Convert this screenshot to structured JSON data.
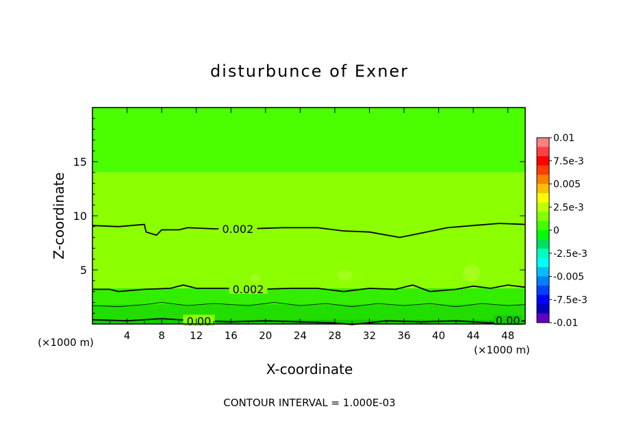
{
  "chart_data": {
    "type": "contour",
    "title": "disturbunce of Exner",
    "xlabel": "X-coordinate",
    "ylabel": "Z-coordinate",
    "x_unit_left": "(×1000 m)",
    "x_unit_right": "(×1000 m)",
    "xlim": [
      0,
      50
    ],
    "ylim": [
      0,
      20
    ],
    "x_ticks": [
      4,
      8,
      12,
      16,
      20,
      24,
      28,
      32,
      36,
      40,
      44,
      48
    ],
    "y_ticks": [
      5,
      10,
      15
    ],
    "footer": "CONTOUR INTERVAL = 1.000E-03",
    "contour_interval": 0.001,
    "bands": [
      {
        "zmin": 14,
        "zmax": 20,
        "value": 0.0015,
        "color": "#4cff00"
      },
      {
        "zmin": 3.3,
        "zmax": 14,
        "value": 0.0025,
        "color": "#8cff00"
      },
      {
        "zmin": 0,
        "zmax": 3.3,
        "value": 0.001,
        "color": "#33ee00"
      }
    ],
    "contours": [
      {
        "label": "0.002",
        "value": 0.002,
        "label_x": 16.8,
        "points": [
          [
            0,
            9.1
          ],
          [
            3,
            9.0
          ],
          [
            6,
            9.2
          ],
          [
            6.2,
            8.5
          ],
          [
            7.4,
            8.2
          ],
          [
            8,
            8.7
          ],
          [
            10,
            8.7
          ],
          [
            11,
            8.9
          ],
          [
            14,
            8.8
          ],
          [
            18,
            8.8
          ],
          [
            22,
            8.9
          ],
          [
            26,
            8.9
          ],
          [
            29,
            8.6
          ],
          [
            32,
            8.5
          ],
          [
            35.5,
            8.0
          ],
          [
            38,
            8.4
          ],
          [
            41,
            8.9
          ],
          [
            44,
            9.1
          ],
          [
            47,
            9.3
          ],
          [
            50,
            9.2
          ]
        ]
      },
      {
        "label": "0.002",
        "value": 0.002,
        "label_x": 18.0,
        "points": [
          [
            0,
            3.2
          ],
          [
            2,
            3.2
          ],
          [
            3,
            3.0
          ],
          [
            6,
            3.2
          ],
          [
            9,
            3.3
          ],
          [
            10.5,
            3.6
          ],
          [
            12,
            3.3
          ],
          [
            16,
            3.3
          ],
          [
            19,
            3.2
          ],
          [
            23,
            3.3
          ],
          [
            26,
            3.3
          ],
          [
            29,
            3.0
          ],
          [
            32,
            3.3
          ],
          [
            35,
            3.2
          ],
          [
            37,
            3.6
          ],
          [
            39,
            3.0
          ],
          [
            42,
            3.2
          ],
          [
            44,
            3.5
          ],
          [
            46,
            3.3
          ],
          [
            48,
            3.6
          ],
          [
            50,
            3.4
          ]
        ]
      },
      {
        "label": "",
        "value": 0.001,
        "label_x": null,
        "points": [
          [
            0,
            1.7
          ],
          [
            3,
            1.6
          ],
          [
            6,
            1.8
          ],
          [
            8,
            2.0
          ],
          [
            11,
            1.7
          ],
          [
            14,
            1.9
          ],
          [
            18,
            1.7
          ],
          [
            21,
            2.0
          ],
          [
            24,
            1.7
          ],
          [
            27,
            1.9
          ],
          [
            30,
            1.6
          ],
          [
            33,
            1.9
          ],
          [
            36,
            1.7
          ],
          [
            39,
            1.9
          ],
          [
            42,
            1.6
          ],
          [
            45,
            1.9
          ],
          [
            48,
            1.7
          ],
          [
            50,
            1.8
          ]
        ]
      },
      {
        "label": "0.00",
        "value": 0.0,
        "label_x": 12.3,
        "points": [
          [
            0,
            0.4
          ],
          [
            4,
            0.3
          ],
          [
            8,
            0.5
          ],
          [
            12,
            0.3
          ],
          [
            16,
            0.2
          ],
          [
            20,
            0.3
          ],
          [
            24,
            0.2
          ],
          [
            28,
            0.1
          ],
          [
            30,
            -0.1
          ],
          [
            34,
            0.3
          ],
          [
            38,
            0.2
          ],
          [
            42,
            0.3
          ],
          [
            46,
            0.1
          ],
          [
            48,
            0.2
          ],
          [
            50,
            0.3
          ]
        ]
      }
    ],
    "blobs": [
      {
        "x": 18.8,
        "z": 4.2,
        "rx": 0.6,
        "rz": 0.4,
        "color": "#a2ff1a"
      },
      {
        "x": 29.2,
        "z": 4.5,
        "rx": 0.9,
        "rz": 0.5,
        "color": "#a2ff1a"
      },
      {
        "x": 43.8,
        "z": 4.7,
        "rx": 1.0,
        "rz": 0.8,
        "color": "#a2ff1a"
      }
    ],
    "label_at_right": {
      "text": "0.00",
      "x": 48.0,
      "z": 0.1
    },
    "colorbar": {
      "labels": [
        "0.01",
        "7.5e-3",
        "0.005",
        "2.5e-3",
        "0",
        "-2.5e-3",
        "-0.005",
        "-7.5e-3",
        "-0.01"
      ],
      "colors": [
        "#ff8080",
        "#ff4040",
        "#ff0000",
        "#ff4000",
        "#ff8000",
        "#ffbf00",
        "#ffff00",
        "#bfff00",
        "#80ff00",
        "#40ff00",
        "#00ff00",
        "#00e060",
        "#00ffbf",
        "#00ffff",
        "#00bfff",
        "#0080ff",
        "#0040ff",
        "#0000ff",
        "#0000c0",
        "#6000c0"
      ]
    }
  }
}
